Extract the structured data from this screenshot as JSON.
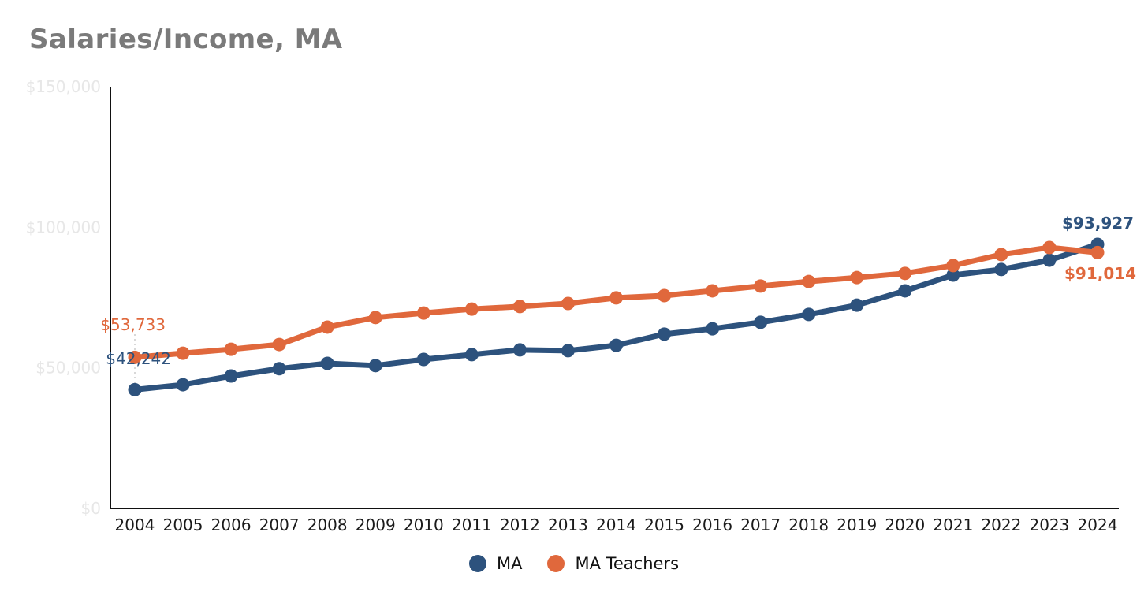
{
  "title": "Salaries/Income, MA",
  "colors": {
    "background": "#ffffff",
    "title_text": "#7a7a7a",
    "axis": "#111111",
    "x_tick_label": "#1a1a1a",
    "y_tick_label": "#e7e7e7",
    "leader_line": "#cccccc",
    "ma_blue": "#2d527d",
    "ma_teachers_orange": "#e0683c"
  },
  "chart_data": {
    "type": "line",
    "title": "Salaries/Income, MA",
    "x": [
      "2004",
      "2005",
      "2006",
      "2007",
      "2008",
      "2009",
      "2010",
      "2011",
      "2012",
      "2013",
      "2014",
      "2015",
      "2016",
      "2017",
      "2018",
      "2019",
      "2020",
      "2021",
      "2022",
      "2023",
      "2024"
    ],
    "ylim": [
      0,
      150000
    ],
    "y_ticks": [
      {
        "value": 0,
        "label": "$0"
      },
      {
        "value": 50000,
        "label": "$50,000"
      },
      {
        "value": 100000,
        "label": "$100,000"
      },
      {
        "value": 150000,
        "label": "$150,000"
      }
    ],
    "grid": false,
    "legend_position": "bottom",
    "series": [
      {
        "name": "MA",
        "color": "#2d527d",
        "values": [
          42242,
          44000,
          47100,
          49700,
          51600,
          50800,
          53000,
          54700,
          56400,
          56100,
          58000,
          62000,
          63900,
          66200,
          69000,
          72300,
          77400,
          83000,
          85000,
          88300,
          93927
        ],
        "start_label": "$42,242",
        "end_label": "$93,927"
      },
      {
        "name": "MA Teachers",
        "color": "#e0683c",
        "values": [
          53733,
          55200,
          56600,
          58300,
          64500,
          67900,
          69500,
          70900,
          71800,
          72900,
          74900,
          75700,
          77400,
          79100,
          80700,
          82100,
          83600,
          86400,
          90300,
          92800,
          91014
        ],
        "start_label": "$53,733",
        "end_label": "$91,014"
      }
    ]
  }
}
